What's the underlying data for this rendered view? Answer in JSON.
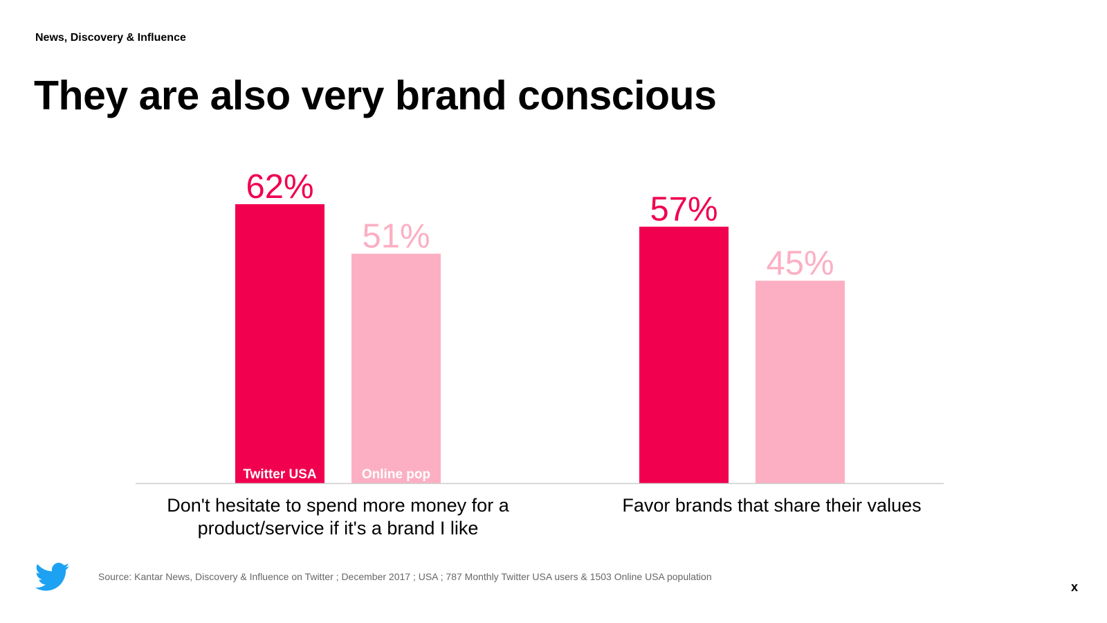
{
  "header": {
    "section": "News, Discovery & Influence",
    "title": "They are also very brand conscious"
  },
  "chart_data": {
    "type": "bar",
    "categories": [
      [
        "Don't hesitate to spend more money for a",
        "product/service if it's a brand I like"
      ],
      [
        "Favor brands that share their values"
      ]
    ],
    "series": [
      {
        "name": "Twitter USA",
        "values": [
          62,
          57
        ],
        "labels": [
          "62%",
          "57%"
        ],
        "color": "#f0004f"
      },
      {
        "name": "Online pop",
        "values": [
          51,
          45
        ],
        "labels": [
          "51%",
          "45%"
        ],
        "color": "#fcafc3"
      }
    ],
    "ylim": [
      0,
      100
    ],
    "grid": false,
    "legend": "inside-bars",
    "axis_color": "#cccccc"
  },
  "footer": {
    "source": "Source: Kantar News, Discovery & Influence on Twitter ; December 2017 ; USA ; 787 Monthly Twitter USA users & 1503 Online USA population",
    "logo_icon": "twitter-bird-icon",
    "logo_color": "#1da1f2",
    "close_label": "x"
  }
}
